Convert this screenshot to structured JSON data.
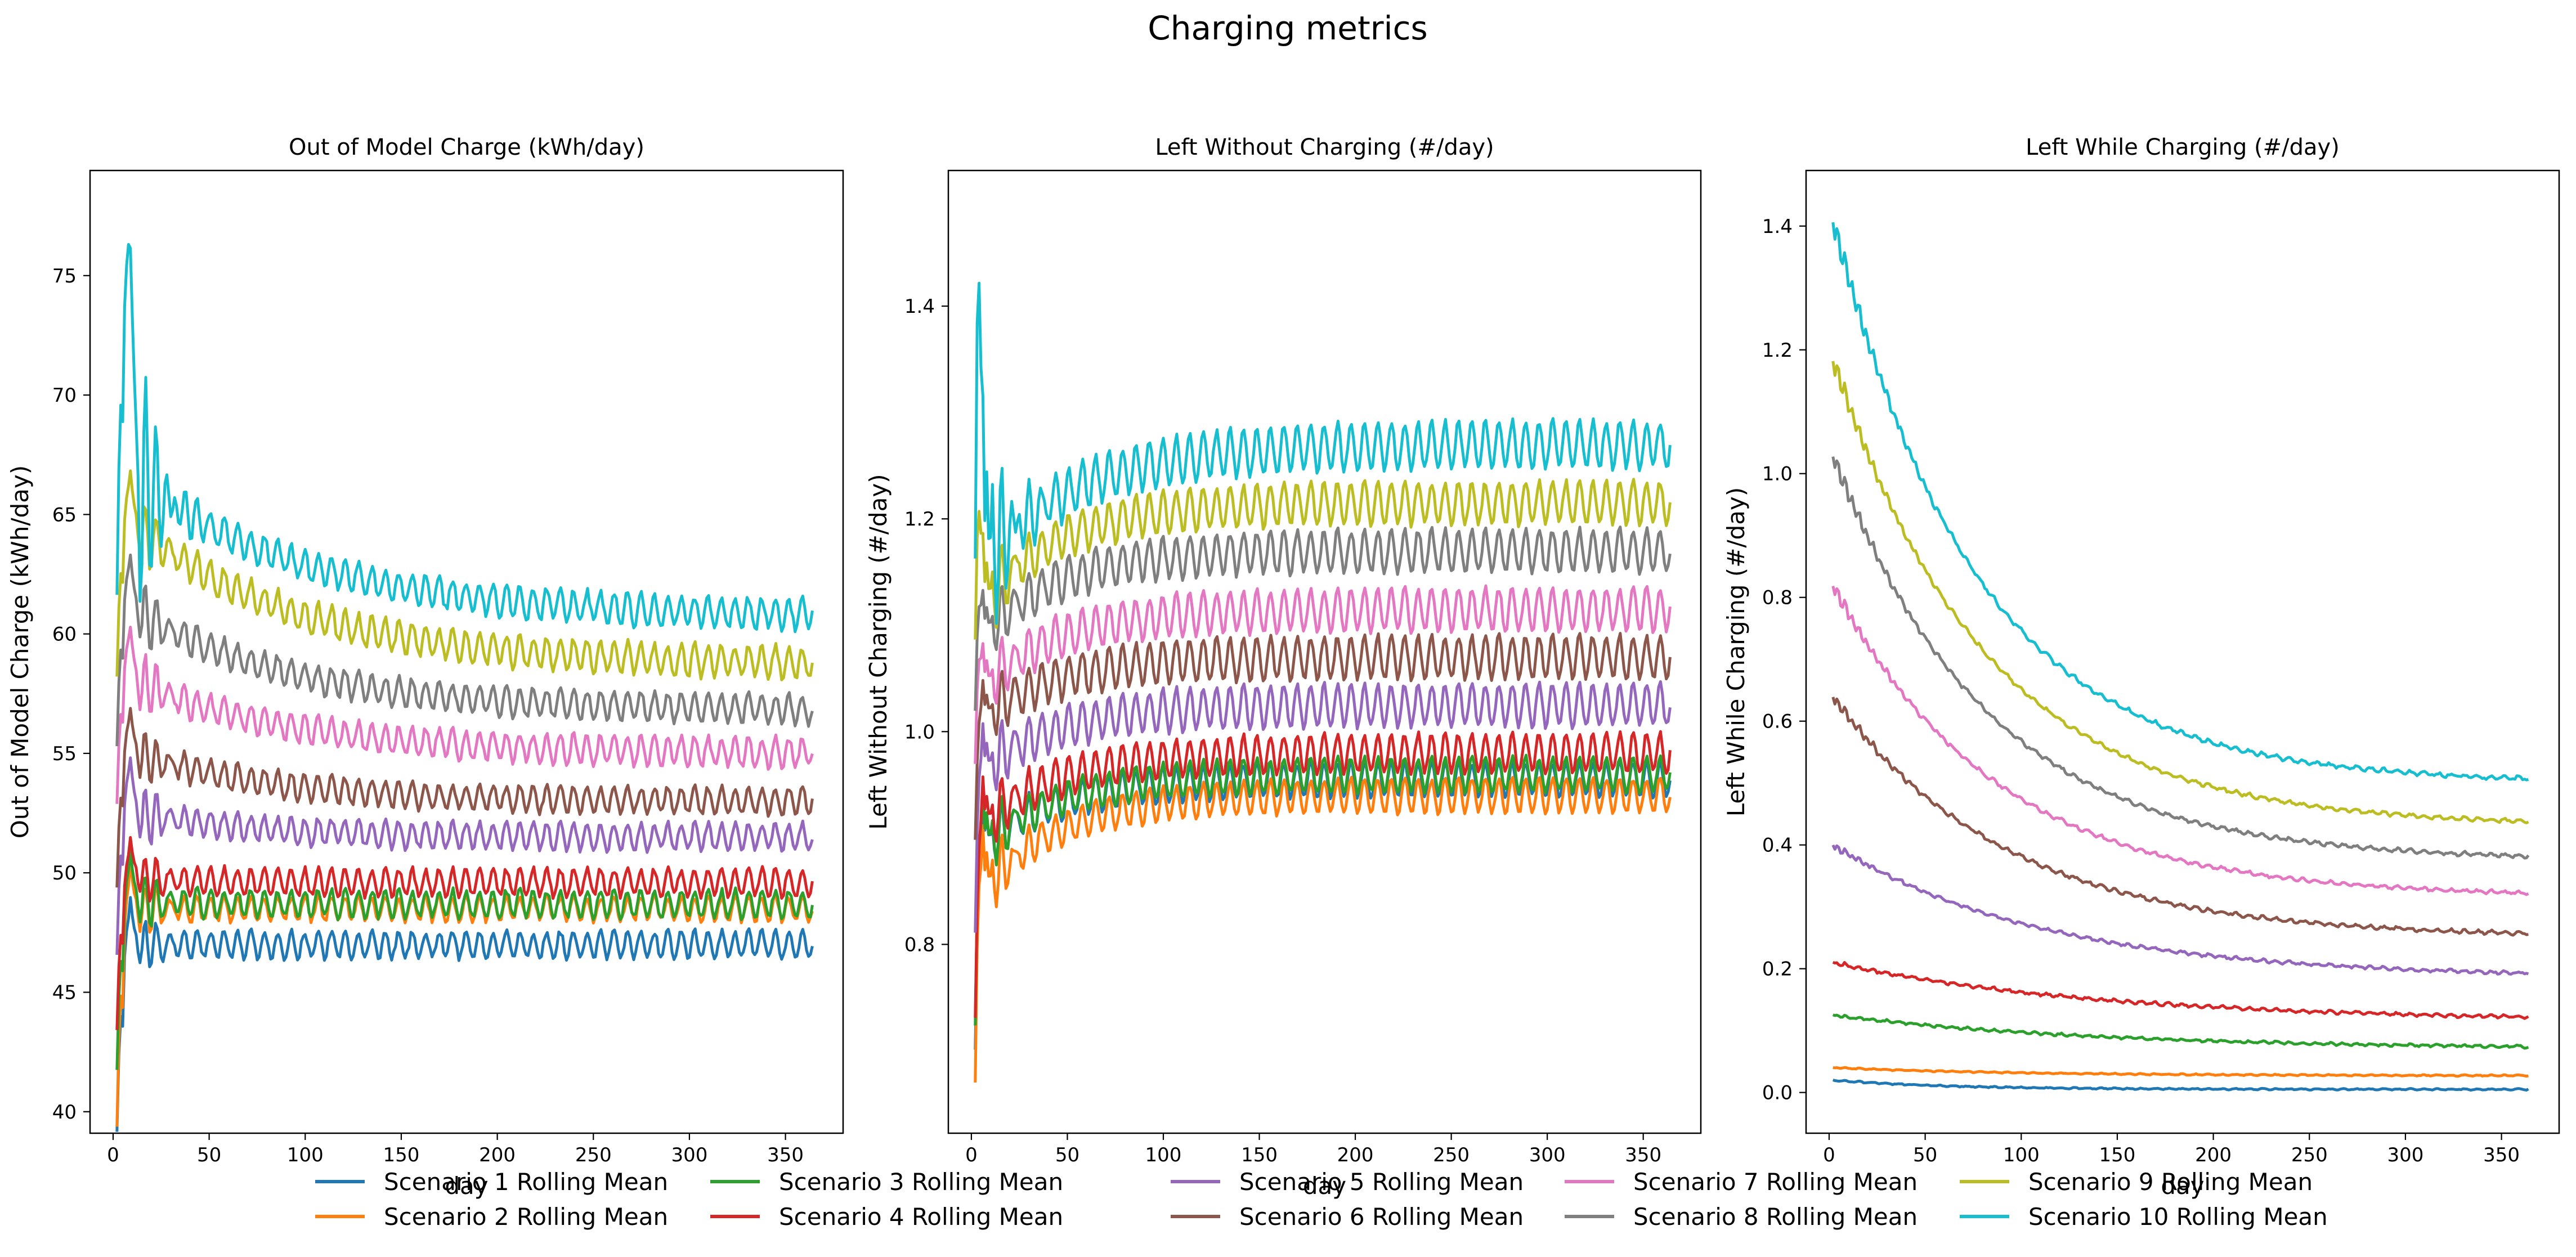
{
  "figure": {
    "title": "Charging metrics"
  },
  "colors": [
    "#1f77b4",
    "#ff7f0e",
    "#2ca02c",
    "#d62728",
    "#9467bd",
    "#8c564b",
    "#e377c2",
    "#7f7f7f",
    "#bcbd22",
    "#17becf"
  ],
  "legend": {
    "placement": "bottom-center",
    "entries": [
      "Scenario 1 Rolling Mean",
      "Scenario 2 Rolling Mean",
      "Scenario 3 Rolling Mean",
      "Scenario 4 Rolling Mean",
      "Scenario 5 Rolling Mean",
      "Scenario 6 Rolling Mean",
      "Scenario 7 Rolling Mean",
      "Scenario 8 Rolling Mean",
      "Scenario 9 Rolling Mean",
      "Scenario 10 Rolling Mean"
    ]
  },
  "chart_data": [
    {
      "type": "line",
      "title": "Out of Model Charge (kWh/day)",
      "xlabel": "day",
      "ylabel": "Out of Model Charge (kWh/day)",
      "xlim": [
        -12,
        380
      ],
      "ylim": [
        39.1,
        79.4
      ],
      "xticks": [
        0,
        50,
        100,
        150,
        200,
        250,
        300,
        350
      ],
      "yticks": [
        40,
        45,
        50,
        55,
        60,
        65,
        70,
        75
      ],
      "x_range": [
        2,
        364
      ],
      "grid": false,
      "series": [
        {
          "name": "Scenario 1 Rolling Mean",
          "start": 40.6,
          "peak": 49.0,
          "plateau": 47.0,
          "end": 47.0,
          "tau": 15,
          "wave_amplitude": 0.55
        },
        {
          "name": "Scenario 2 Rolling Mean",
          "start": 41.0,
          "peak": 50.5,
          "plateau": 48.5,
          "end": 48.5,
          "tau": 15,
          "wave_amplitude": 0.5
        },
        {
          "name": "Scenario 3 Rolling Mean",
          "start": 43.1,
          "peak": 51.0,
          "plateau": 48.9,
          "end": 48.7,
          "tau": 20,
          "wave_amplitude": 0.55
        },
        {
          "name": "Scenario 4 Rolling Mean",
          "start": 44.6,
          "peak": 51.5,
          "plateau": 49.9,
          "end": 49.6,
          "tau": 20,
          "wave_amplitude": 0.55
        },
        {
          "name": "Scenario 5 Rolling Mean",
          "start": 47.8,
          "peak": 55.0,
          "plateau": 52.5,
          "end": 51.5,
          "tau": 60,
          "wave_amplitude": 0.55
        },
        {
          "name": "Scenario 6 Rolling Mean",
          "start": 50.5,
          "peak": 57.0,
          "plateau": 55.0,
          "end": 53.0,
          "tau": 70,
          "wave_amplitude": 0.55
        },
        {
          "name": "Scenario 7 Rolling Mean",
          "start": 54.0,
          "peak": 60.5,
          "plateau": 58.0,
          "end": 55.0,
          "tau": 80,
          "wave_amplitude": 0.6
        },
        {
          "name": "Scenario 8 Rolling Mean",
          "start": 56.5,
          "peak": 63.5,
          "plateau": 61.0,
          "end": 56.8,
          "tau": 80,
          "wave_amplitude": 0.6
        },
        {
          "name": "Scenario 9 Rolling Mean",
          "start": 59.5,
          "peak": 67.0,
          "plateau": 64.5,
          "end": 58.7,
          "tau": 85,
          "wave_amplitude": 0.65
        },
        {
          "name": "Scenario 10 Rolling Mean",
          "start": 64.0,
          "peak": 77.8,
          "plateau": 66.5,
          "end": 60.7,
          "tau": 90,
          "wave_amplitude": 0.65
        }
      ]
    },
    {
      "type": "line",
      "title": "Left Without Charging (#/day)",
      "xlabel": "day",
      "ylabel": "Left Without Charging (#/day)",
      "xlim": [
        -12,
        380
      ],
      "ylim": [
        0.6225,
        1.5275
      ],
      "xticks": [
        0,
        50,
        100,
        150,
        200,
        250,
        300,
        350
      ],
      "yticks": [
        0.8,
        1.0,
        1.2,
        1.4
      ],
      "x_range": [
        2,
        364
      ],
      "grid": false,
      "series": [
        {
          "name": "Scenario 1 Rolling Mean",
          "start": 0.69,
          "peak": 0.98,
          "early": 0.9,
          "end": 0.955,
          "tau": 40,
          "wave_amplitude": 0.016
        },
        {
          "name": "Scenario 2 Rolling Mean",
          "start": 0.655,
          "peak": 0.97,
          "early": 0.86,
          "end": 0.94,
          "tau": 40,
          "wave_amplitude": 0.016
        },
        {
          "name": "Scenario 3 Rolling Mean",
          "start": 0.71,
          "peak": 1.0,
          "early": 0.9,
          "end": 0.96,
          "tau": 40,
          "wave_amplitude": 0.016
        },
        {
          "name": "Scenario 4 Rolling Mean",
          "start": 0.72,
          "peak": 1.0,
          "early": 0.92,
          "end": 0.98,
          "tau": 40,
          "wave_amplitude": 0.018
        },
        {
          "name": "Scenario 5 Rolling Mean",
          "start": 0.8,
          "peak": 1.05,
          "early": 0.97,
          "end": 1.025,
          "tau": 40,
          "wave_amplitude": 0.02
        },
        {
          "name": "Scenario 6 Rolling Mean",
          "start": 0.89,
          "peak": 1.08,
          "early": 1.02,
          "end": 1.07,
          "tau": 40,
          "wave_amplitude": 0.02
        },
        {
          "name": "Scenario 7 Rolling Mean",
          "start": 0.96,
          "peak": 1.12,
          "early": 1.05,
          "end": 1.115,
          "tau": 40,
          "wave_amplitude": 0.02
        },
        {
          "name": "Scenario 8 Rolling Mean",
          "start": 1.01,
          "peak": 1.17,
          "early": 1.1,
          "end": 1.17,
          "tau": 40,
          "wave_amplitude": 0.02
        },
        {
          "name": "Scenario 9 Rolling Mean",
          "start": 1.07,
          "peak": 1.25,
          "early": 1.13,
          "end": 1.215,
          "tau": 40,
          "wave_amplitude": 0.02
        },
        {
          "name": "Scenario 10 Rolling Mean",
          "start": 1.12,
          "peak": 1.48,
          "early": 1.17,
          "end": 1.27,
          "tau": 50,
          "wave_amplitude": 0.022
        }
      ]
    },
    {
      "type": "line",
      "title": "Left While Charging (#/day)",
      "xlabel": "day",
      "ylabel": "Left While Charging (#/day)",
      "xlim": [
        -12,
        380
      ],
      "ylim": [
        -0.0658,
        1.4898
      ],
      "xticks": [
        0,
        50,
        100,
        150,
        200,
        250,
        300,
        350
      ],
      "yticks": [
        0.0,
        0.2,
        0.4,
        0.6,
        0.8,
        1.0,
        1.2,
        1.4
      ],
      "x_range": [
        2,
        364
      ],
      "grid": false,
      "series": [
        {
          "name": "Scenario 1 Rolling Mean",
          "start": 0.02,
          "end": 0.005,
          "tau": 60,
          "wave_amplitude": 0.002
        },
        {
          "name": "Scenario 2 Rolling Mean",
          "start": 0.04,
          "end": 0.027,
          "tau": 100,
          "wave_amplitude": 0.002
        },
        {
          "name": "Scenario 3 Rolling Mean",
          "start": 0.125,
          "end": 0.07,
          "tau": 140,
          "wave_amplitude": 0.004
        },
        {
          "name": "Scenario 4 Rolling Mean",
          "start": 0.21,
          "end": 0.115,
          "tau": 140,
          "wave_amplitude": 0.005
        },
        {
          "name": "Scenario 5 Rolling Mean",
          "start": 0.4,
          "end": 0.185,
          "tau": 110,
          "wave_amplitude": 0.005
        },
        {
          "name": "Scenario 6 Rolling Mean",
          "start": 0.64,
          "end": 0.25,
          "tau": 90,
          "wave_amplitude": 0.006
        },
        {
          "name": "Scenario 7 Rolling Mean",
          "start": 0.82,
          "end": 0.315,
          "tau": 85,
          "wave_amplitude": 0.006
        },
        {
          "name": "Scenario 8 Rolling Mean",
          "start": 1.03,
          "end": 0.375,
          "tau": 80,
          "wave_amplitude": 0.006
        },
        {
          "name": "Scenario 9 Rolling Mean",
          "start": 1.185,
          "end": 0.43,
          "tau": 80,
          "wave_amplitude": 0.006
        },
        {
          "name": "Scenario 10 Rolling Mean",
          "start": 1.41,
          "end": 0.5,
          "tau": 75,
          "wave_amplitude": 0.007
        }
      ]
    }
  ]
}
